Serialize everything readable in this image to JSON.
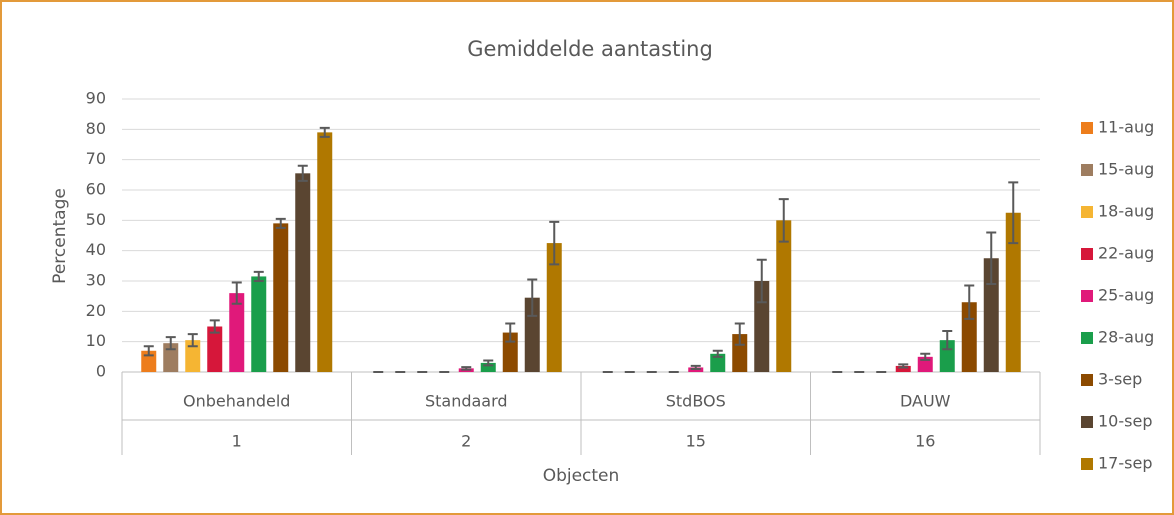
{
  "chart_data": {
    "type": "bar",
    "title": "Gemiddelde aantasting",
    "y_label": "Percentage",
    "x_label": "Objecten",
    "categories": [
      "Onbehandeld",
      "Standaard",
      "StdBOS",
      "DAUW"
    ],
    "subcategories": [
      "1",
      "2",
      "15",
      "16"
    ],
    "ylim": [
      0,
      90
    ],
    "yticks": [
      0,
      10,
      20,
      30,
      40,
      50,
      60,
      70,
      80,
      90
    ],
    "grid": true,
    "legend": "right",
    "series": [
      {
        "name": "11-aug",
        "color": "#ed7d1c",
        "values": [
          7,
          0,
          0,
          0
        ],
        "errors": [
          1.5,
          0,
          0,
          0
        ]
      },
      {
        "name": "15-aug",
        "color": "#9e7d60",
        "values": [
          9.5,
          0,
          0,
          0
        ],
        "errors": [
          2,
          0,
          0,
          0
        ]
      },
      {
        "name": "18-aug",
        "color": "#f5b533",
        "values": [
          10.5,
          0,
          0,
          0
        ],
        "errors": [
          2,
          0,
          0,
          0
        ]
      },
      {
        "name": "22-aug",
        "color": "#d6173a",
        "values": [
          15,
          0,
          0,
          2
        ],
        "errors": [
          2,
          0,
          0,
          0.5
        ]
      },
      {
        "name": "25-aug",
        "color": "#e0197a",
        "values": [
          26,
          1.2,
          1.5,
          5
        ],
        "errors": [
          3.5,
          0.4,
          0.5,
          1
        ]
      },
      {
        "name": "28-aug",
        "color": "#1a9e4b",
        "values": [
          31.5,
          3,
          6,
          10.5
        ],
        "errors": [
          1.5,
          0.8,
          1,
          3
        ]
      },
      {
        "name": "3-sep",
        "color": "#8c4a00",
        "values": [
          49,
          13,
          12.5,
          23
        ],
        "errors": [
          1.5,
          3,
          3.5,
          5.5
        ]
      },
      {
        "name": "10-sep",
        "color": "#5a4531",
        "values": [
          65.5,
          24.5,
          30,
          37.5
        ],
        "errors": [
          2.5,
          6,
          7,
          8.5
        ]
      },
      {
        "name": "17-sep",
        "color": "#b07800",
        "values": [
          79,
          42.5,
          50,
          52.5
        ],
        "errors": [
          1.5,
          7,
          7,
          10
        ]
      }
    ]
  }
}
